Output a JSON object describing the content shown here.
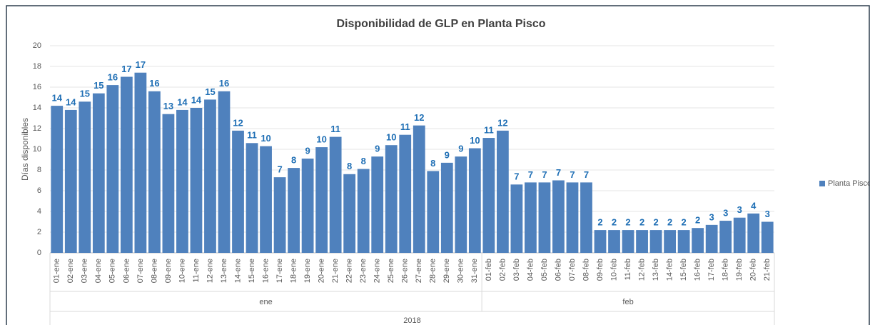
{
  "chart_data": {
    "type": "bar",
    "title": "Disponibilidad de GLP en Planta Pisco",
    "y_label": "Días disponibles",
    "categories": [
      "01-ene",
      "02-ene",
      "03-ene",
      "04-ene",
      "05-ene",
      "06-ene",
      "07-ene",
      "08-ene",
      "09-ene",
      "10-ene",
      "11-ene",
      "12-ene",
      "13-ene",
      "14-ene",
      "15-ene",
      "16-ene",
      "17-ene",
      "18-ene",
      "19-ene",
      "20-ene",
      "21-ene",
      "22-ene",
      "23-ene",
      "24-ene",
      "25-ene",
      "26-ene",
      "27-ene",
      "28-ene",
      "29-ene",
      "30-ene",
      "31-ene",
      "01-feb",
      "02-feb",
      "03-feb",
      "04-feb",
      "05-feb",
      "06-feb",
      "07-feb",
      "08-feb",
      "09-feb",
      "10-feb",
      "11-feb",
      "12-feb",
      "13-feb",
      "14-feb",
      "15-feb",
      "16-feb",
      "17-feb",
      "18-feb",
      "19-feb",
      "20-feb",
      "21-feb"
    ],
    "groups": [
      "ene",
      "feb"
    ],
    "year": "2018",
    "series": [
      {
        "name": "Planta Pisco",
        "color": "#4f81bd",
        "values": [
          14.2,
          13.8,
          14.6,
          15.4,
          16.2,
          17.0,
          17.4,
          15.6,
          13.4,
          13.8,
          14.0,
          14.8,
          15.6,
          11.8,
          10.6,
          10.3,
          7.3,
          8.2,
          9.1,
          10.2,
          11.2,
          7.6,
          8.1,
          9.3,
          10.4,
          11.4,
          12.3,
          7.9,
          8.7,
          9.3,
          10.1,
          11.1,
          11.8,
          6.6,
          6.8,
          6.8,
          7.0,
          6.8,
          6.8,
          2.2,
          2.2,
          2.2,
          2.2,
          2.2,
          2.2,
          2.2,
          2.4,
          2.7,
          3.1,
          3.4,
          3.8,
          3.0
        ],
        "value_labels": [
          "14",
          "14",
          "15",
          "15",
          "16",
          "17",
          "17",
          "16",
          "13",
          "14",
          "14",
          "15",
          "16",
          "12",
          "11",
          "10",
          "7",
          "8",
          "9",
          "10",
          "11",
          "8",
          "8",
          "9",
          "10",
          "11",
          "12",
          "8",
          "9",
          "9",
          "10",
          "11",
          "12",
          "7",
          "7",
          "7",
          "7",
          "7",
          "7",
          "2",
          "2",
          "2",
          "2",
          "2",
          "2",
          "2",
          "2",
          "3",
          "3",
          "3",
          "4",
          "3"
        ]
      }
    ],
    "ylim": [
      0,
      20
    ],
    "yticks": [
      0,
      2,
      4,
      6,
      8,
      10,
      12,
      14,
      16,
      18,
      20
    ],
    "grid": true,
    "legend": "right"
  }
}
